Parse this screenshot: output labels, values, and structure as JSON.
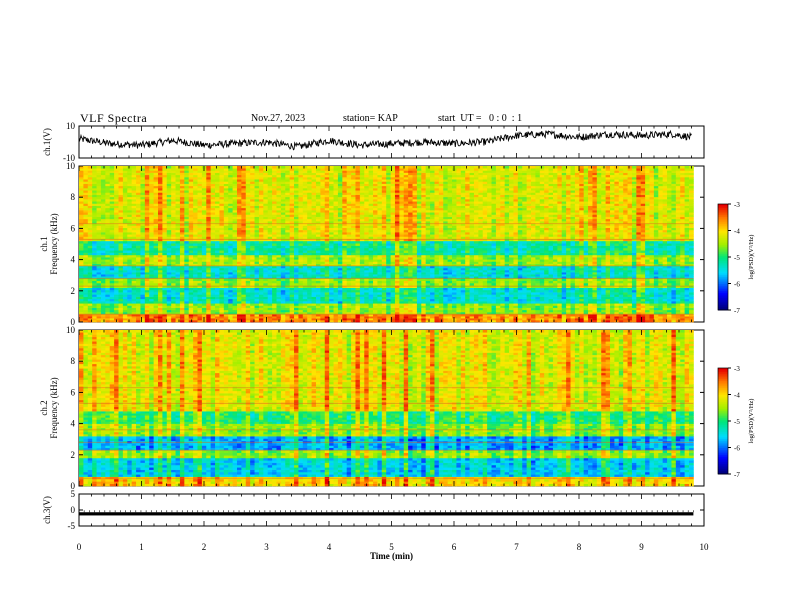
{
  "header": {
    "title": "VLF Spectra",
    "date": "Nov.27, 2023",
    "station": "station= KAP",
    "start": "start  UT =   0 : 0  : 1"
  },
  "chart_data": [
    {
      "type": "line",
      "panel": "ch1-waveform",
      "ylabel": "ch.1(V)",
      "ylim": [
        -10,
        10
      ],
      "yticks": [
        "10",
        "-10"
      ],
      "xlim": [
        0,
        10
      ],
      "samples_note": "noisy waveform around ~0 V, slightly higher after 7 min",
      "x": [
        0,
        0.5,
        1,
        1.5,
        2,
        2.5,
        3,
        3.5,
        4,
        4.5,
        5,
        5.5,
        6,
        6.5,
        7,
        7.5,
        8,
        8.5,
        9,
        9.5,
        9.8
      ],
      "y": [
        2,
        -1,
        -2,
        1,
        -2,
        -1,
        0,
        -3,
        1,
        -2,
        -1,
        0,
        -1,
        0,
        4,
        5,
        3,
        5,
        4,
        5,
        3
      ]
    },
    {
      "type": "heatmap",
      "panel": "ch1-spectrogram",
      "ylabel": "ch.1\nFrequency (kHz)",
      "ylim": [
        0,
        10
      ],
      "yticks": [
        "0",
        "2",
        "4",
        "6",
        "8",
        "10"
      ],
      "xlim": [
        0,
        9.83
      ],
      "colorbar": {
        "label": "log(PSD)(V²/Hz)",
        "range": [
          -7,
          -3
        ],
        "ticks": [
          "-3",
          "-4",
          "-5",
          "-6",
          "-7"
        ]
      },
      "bands_kHz": [
        {
          "from": 0.0,
          "to": 0.5,
          "level": -3.6
        },
        {
          "from": 0.5,
          "to": 1.2,
          "level": -4.6
        },
        {
          "from": 1.2,
          "to": 2.2,
          "level": -5.4
        },
        {
          "from": 2.2,
          "to": 2.8,
          "level": -4.6
        },
        {
          "from": 2.8,
          "to": 3.6,
          "level": -5.4
        },
        {
          "from": 3.6,
          "to": 4.3,
          "level": -4.5
        },
        {
          "from": 4.3,
          "to": 5.2,
          "level": -5.2
        },
        {
          "from": 5.2,
          "to": 10.0,
          "level": -4.2
        }
      ]
    },
    {
      "type": "heatmap",
      "panel": "ch2-spectrogram",
      "ylabel": "ch.2\nFrequency (kHz)",
      "ylim": [
        0,
        10
      ],
      "yticks": [
        "0",
        "2",
        "4",
        "6",
        "8",
        "10"
      ],
      "xlim": [
        0,
        9.83
      ],
      "colorbar": {
        "label": "log(PSD)(V²/Hz)",
        "range": [
          -7,
          -3
        ],
        "ticks": [
          "-3",
          "-4",
          "-5",
          "-6",
          "-7"
        ]
      },
      "bands_kHz": [
        {
          "from": 0.0,
          "to": 0.6,
          "level": -4.0
        },
        {
          "from": 0.6,
          "to": 1.8,
          "level": -5.6
        },
        {
          "from": 1.8,
          "to": 2.3,
          "level": -4.6
        },
        {
          "from": 2.3,
          "to": 3.2,
          "level": -5.8
        },
        {
          "from": 3.2,
          "to": 4.0,
          "level": -4.6
        },
        {
          "from": 4.0,
          "to": 4.8,
          "level": -5.0
        },
        {
          "from": 4.8,
          "to": 10.0,
          "level": -4.2
        }
      ]
    },
    {
      "type": "line",
      "panel": "ch3-waveform",
      "ylabel": "ch.3(V)",
      "ylim": [
        -5,
        5
      ],
      "yticks": [
        "5",
        "0",
        "-5"
      ],
      "xlim": [
        0,
        10
      ],
      "x": [
        0,
        9.83
      ],
      "y": [
        -1.2,
        -1.2
      ],
      "band_halfwidth": 0.5
    }
  ],
  "x_axis": {
    "label": "Time (min)",
    "ticks": [
      "0",
      "1",
      "2",
      "3",
      "4",
      "5",
      "6",
      "7",
      "8",
      "9",
      "10"
    ],
    "range": [
      0,
      10
    ]
  }
}
